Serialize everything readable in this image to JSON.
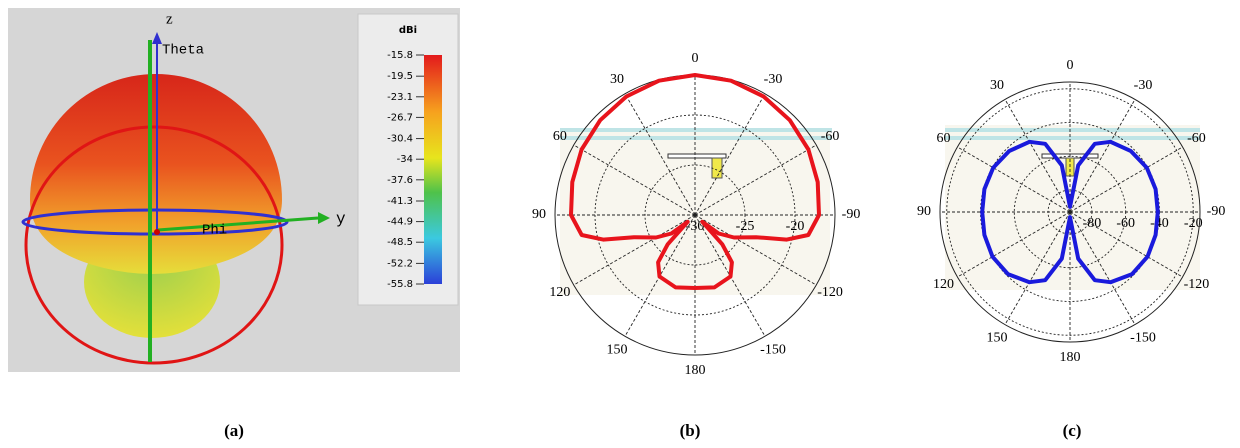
{
  "chart_data": [
    {
      "type": "surface3d",
      "label": "(a)",
      "axis_labels": [
        "z",
        "Theta",
        "Phi",
        "y"
      ],
      "colorbar_title": "dBi",
      "clim": [
        -55.8,
        -15.8
      ],
      "colorbar_ticks": [
        -15.8,
        -19.5,
        -23.1,
        -26.7,
        -30.4,
        -34,
        -37.6,
        -41.3,
        -44.9,
        -48.5,
        -52.2,
        -55.8
      ]
    },
    {
      "type": "polar",
      "label": "(b)",
      "angle_ticks": [
        0,
        30,
        60,
        90,
        120,
        150,
        180,
        -150,
        -120,
        -90,
        -60,
        -30
      ],
      "rlim": [
        -30,
        -16
      ],
      "rticks": [
        -30,
        -25,
        -20
      ],
      "series": [
        {
          "color": "#e8141c",
          "theta": [
            0,
            15,
            30,
            45,
            60,
            75,
            90,
            100,
            105,
            110,
            120,
            128,
            133,
            137,
            142,
            150,
            165,
            180,
            -165,
            -150,
            -142,
            -137,
            -133,
            -128,
            -120,
            -110,
            -105,
            -100,
            -90,
            -75,
            -60,
            -45,
            -30,
            -15
          ],
          "r": [
            -16,
            -16.1,
            -16.3,
            -16.6,
            -16.9,
            -17.3,
            -17.6,
            -18.5,
            -20.5,
            -23.5,
            -25.5,
            -27,
            -29,
            -26,
            -24,
            -22.9,
            -22.5,
            -22.7,
            -22.5,
            -22.9,
            -24,
            -26,
            -29,
            -27,
            -25.5,
            -23.5,
            -20.5,
            -18.5,
            -17.6,
            -17.3,
            -16.9,
            -16.6,
            -16.3,
            -16.1
          ]
        }
      ]
    },
    {
      "type": "polar",
      "label": "(c)",
      "angle_ticks": [
        0,
        30,
        60,
        90,
        120,
        150,
        180,
        -150,
        -120,
        -90,
        -60,
        -30
      ],
      "rlim": [
        -93,
        -16
      ],
      "rticks": [
        -80,
        -60,
        -40,
        -20
      ],
      "series": [
        {
          "color": "#1a1adc",
          "theta": [
            0,
            10,
            20,
            30,
            45,
            60,
            75,
            90,
            105,
            120,
            135,
            150,
            160,
            170,
            180,
            -170,
            -160,
            -150,
            -135,
            -120,
            -105,
            -90,
            -75,
            -60,
            -45,
            -30,
            -20,
            -10
          ],
          "r": [
            -90,
            -65,
            -50,
            -45,
            -42,
            -40.5,
            -40.5,
            -41,
            -40.5,
            -40,
            -41,
            -45,
            -50,
            -65,
            -90,
            -65,
            -50,
            -45,
            -41,
            -40,
            -40.5,
            -41,
            -40.5,
            -40.5,
            -42,
            -45,
            -50,
            -65
          ]
        }
      ]
    }
  ]
}
